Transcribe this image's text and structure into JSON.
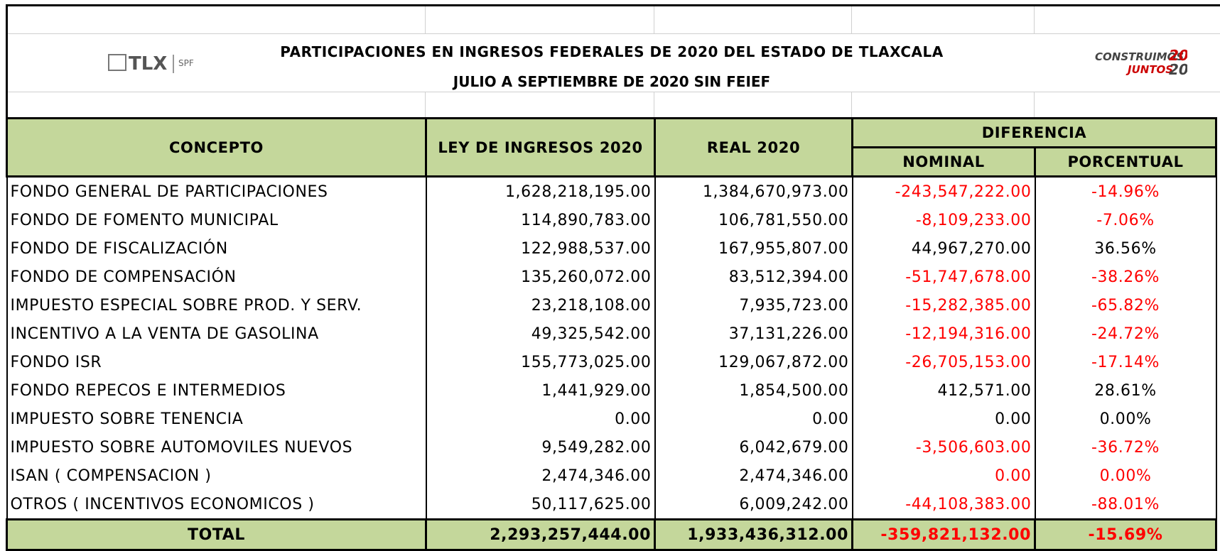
{
  "header": {
    "title": "PARTICIPACIONES EN INGRESOS FEDERALES DE 2020 DEL ESTADO DE TLAXCALA",
    "subtitle": "JULIO A SEPTIEMBRE DE 2020 SIN FEIEF",
    "logo_left": {
      "text": "TLX",
      "sub": "SPF"
    },
    "logo_right": {
      "line1": "CONSTRUIMOS",
      "line2": "JUNTOS",
      "num1": "20",
      "num2": "20"
    }
  },
  "table": {
    "columns": {
      "concepto": "CONCEPTO",
      "ley": "LEY DE INGRESOS 2020",
      "real": "REAL 2020",
      "diferencia": "DIFERENCIA",
      "nominal": "NOMINAL",
      "porcentual": "PORCENTUAL"
    },
    "header_color": "#c4d79b",
    "rows": [
      {
        "concepto": "FONDO GENERAL DE PARTICIPACIONES",
        "ley": "1,628,218,195.00",
        "real": "1,384,670,973.00",
        "nominal": "-243,547,222.00",
        "porcentual": "-14.96%",
        "diff_color": "#ff0000"
      },
      {
        "concepto": "FONDO DE FOMENTO MUNICIPAL",
        "ley": "114,890,783.00",
        "real": "106,781,550.00",
        "nominal": "-8,109,233.00",
        "porcentual": "-7.06%",
        "diff_color": "#ff0000"
      },
      {
        "concepto": "FONDO DE FISCALIZACIÓN",
        "ley": "122,988,537.00",
        "real": "167,955,807.00",
        "nominal": "44,967,270.00",
        "porcentual": "36.56%",
        "diff_color": "#000000"
      },
      {
        "concepto": "FONDO DE COMPENSACIÓN",
        "ley": "135,260,072.00",
        "real": "83,512,394.00",
        "nominal": "-51,747,678.00",
        "porcentual": "-38.26%",
        "diff_color": "#ff0000"
      },
      {
        "concepto": "IMPUESTO ESPECIAL SOBRE PROD. Y SERV.",
        "ley": "23,218,108.00",
        "real": "7,935,723.00",
        "nominal": "-15,282,385.00",
        "porcentual": "-65.82%",
        "diff_color": "#ff0000"
      },
      {
        "concepto": "INCENTIVO A LA VENTA DE GASOLINA",
        "ley": "49,325,542.00",
        "real": "37,131,226.00",
        "nominal": "-12,194,316.00",
        "porcentual": "-24.72%",
        "diff_color": "#ff0000"
      },
      {
        "concepto": "FONDO ISR",
        "ley": "155,773,025.00",
        "real": "129,067,872.00",
        "nominal": "-26,705,153.00",
        "porcentual": "-17.14%",
        "diff_color": "#ff0000"
      },
      {
        "concepto": "FONDO REPECOS E INTERMEDIOS",
        "ley": "1,441,929.00",
        "real": "1,854,500.00",
        "nominal": "412,571.00",
        "porcentual": "28.61%",
        "diff_color": "#000000"
      },
      {
        "concepto": "IMPUESTO SOBRE TENENCIA",
        "ley": "0.00",
        "real": "0.00",
        "nominal": "0.00",
        "porcentual": "0.00%",
        "diff_color": "#000000"
      },
      {
        "concepto": "IMPUESTO SOBRE AUTOMOVILES NUEVOS",
        "ley": "9,549,282.00",
        "real": "6,042,679.00",
        "nominal": "-3,506,603.00",
        "porcentual": "-36.72%",
        "diff_color": "#ff0000"
      },
      {
        "concepto": "ISAN ( COMPENSACION )",
        "ley": "2,474,346.00",
        "real": "2,474,346.00",
        "nominal": "0.00",
        "porcentual": "0.00%",
        "diff_color": "#ff0000"
      },
      {
        "concepto": "OTROS ( INCENTIVOS ECONOMICOS )",
        "ley": "50,117,625.00",
        "real": "6,009,242.00",
        "nominal": "-44,108,383.00",
        "porcentual": "-88.01%",
        "diff_color": "#ff0000"
      }
    ],
    "total": {
      "concepto": "TOTAL",
      "ley": "2,293,257,444.00",
      "real": "1,933,436,312.00",
      "nominal": "-359,821,132.00",
      "porcentual": "-15.69%",
      "diff_color": "#ff0000"
    }
  }
}
